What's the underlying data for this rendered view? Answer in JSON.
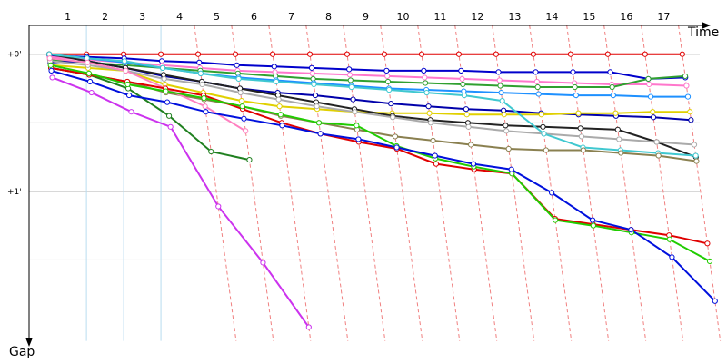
{
  "chart_data": {
    "type": "line",
    "x_label": "Time",
    "y_label": "Gap",
    "x": [
      0,
      1,
      2,
      3,
      4,
      5,
      6,
      7,
      8,
      9,
      10,
      11,
      12,
      13,
      14,
      15,
      16,
      17
    ],
    "xlim": [
      -0.54,
      18.2
    ],
    "xticks": [
      {
        "value": 0.5,
        "label": "1"
      },
      {
        "value": 1.5,
        "label": "2"
      },
      {
        "value": 2.5,
        "label": "3"
      },
      {
        "value": 3.5,
        "label": "4"
      },
      {
        "value": 4.5,
        "label": "5"
      },
      {
        "value": 5.5,
        "label": "6"
      },
      {
        "value": 6.5,
        "label": "7"
      },
      {
        "value": 7.5,
        "label": "8"
      },
      {
        "value": 8.5,
        "label": "9"
      },
      {
        "value": 9.5,
        "label": "10"
      },
      {
        "value": 10.5,
        "label": "11"
      },
      {
        "value": 11.5,
        "label": "12"
      },
      {
        "value": 12.5,
        "label": "13"
      },
      {
        "value": 13.5,
        "label": "14"
      },
      {
        "value": 14.5,
        "label": "15"
      },
      {
        "value": 15.5,
        "label": "16"
      },
      {
        "value": 16.5,
        "label": "17"
      }
    ],
    "ylim": [
      -0.21,
      2.09
    ],
    "yticks": [
      {
        "value": 0,
        "label": "+0'"
      },
      {
        "value": 1,
        "label": "+1'"
      }
    ],
    "minor_yticks": [
      0.5,
      1.5
    ],
    "grid": true,
    "series": [
      {
        "color": "#e00000",
        "values": [
          0,
          0,
          0,
          0,
          0,
          0,
          0,
          0,
          0,
          0,
          0,
          0,
          0,
          0,
          0,
          0,
          0,
          0
        ]
      },
      {
        "color": "#0000cc",
        "values": [
          0.01,
          0.02,
          0.03,
          0.05,
          0.06,
          0.08,
          0.09,
          0.1,
          0.11,
          0.12,
          0.12,
          0.12,
          0.13,
          0.13,
          0.13,
          0.13,
          0.18,
          0.17
        ]
      },
      {
        "color": "#ff77cc",
        "values": [
          0.02,
          0.04,
          0.06,
          0.08,
          0.1,
          0.12,
          0.13,
          0.14,
          0.15,
          0.16,
          0.17,
          0.18,
          0.19,
          0.2,
          0.21,
          0.22,
          0.22,
          0.23
        ]
      },
      {
        "color": "#30a030",
        "values": [
          0.04,
          0.06,
          0.08,
          0.1,
          0.12,
          0.14,
          0.16,
          0.18,
          0.19,
          0.2,
          0.21,
          0.22,
          0.23,
          0.24,
          0.24,
          0.24,
          0.18,
          0.16
        ]
      },
      {
        "color": "#1e90ff",
        "values": [
          0.0,
          0.03,
          0.06,
          0.1,
          0.14,
          0.17,
          0.19,
          0.21,
          0.23,
          0.25,
          0.26,
          0.27,
          0.28,
          0.29,
          0.3,
          0.3,
          0.31,
          0.31
        ]
      },
      {
        "color": "#0000aa",
        "values": [
          0.06,
          0.05,
          0.1,
          0.16,
          0.2,
          0.25,
          0.28,
          0.3,
          0.33,
          0.36,
          0.38,
          0.4,
          0.41,
          0.43,
          0.44,
          0.45,
          0.46,
          0.48
        ]
      },
      {
        "color": "#e0d000",
        "values": [
          0.08,
          0.1,
          0.12,
          0.22,
          0.28,
          0.34,
          0.38,
          0.4,
          0.42,
          0.43,
          0.43,
          0.44,
          0.44,
          0.44,
          0.43,
          0.43,
          0.42,
          0.42
        ]
      },
      {
        "color": "#222222",
        "values": [
          0.0,
          0.05,
          0.1,
          0.15,
          0.2,
          0.25,
          0.3,
          0.35,
          0.4,
          0.45,
          0.48,
          0.5,
          0.52,
          0.53,
          0.54,
          0.55,
          0.64,
          0.75
        ]
      },
      {
        "color": "#aaaaaa",
        "values": [
          0.05,
          0.08,
          0.12,
          0.18,
          0.22,
          0.28,
          0.33,
          0.38,
          0.42,
          0.46,
          0.5,
          0.53,
          0.56,
          0.58,
          0.6,
          0.62,
          0.64,
          0.66
        ]
      },
      {
        "color": "#40c8d0",
        "values": [
          0.0,
          0.03,
          0.05,
          0.1,
          0.14,
          0.18,
          0.2,
          0.22,
          0.24,
          0.26,
          0.28,
          0.3,
          0.34,
          0.58,
          0.68,
          0.7,
          0.72,
          0.74
        ]
      },
      {
        "color": "#8a8050",
        "values": [
          0.1,
          0.15,
          0.2,
          0.28,
          0.33,
          0.38,
          0.45,
          0.5,
          0.55,
          0.6,
          0.63,
          0.66,
          0.69,
          0.7,
          0.7,
          0.72,
          0.74,
          0.78
        ]
      },
      {
        "color": "#ff80c0",
        "values": [
          0.03,
          0.06,
          0.12,
          0.25,
          0.38,
          0.56,
          null,
          null,
          null,
          null,
          null,
          null,
          null,
          null,
          null,
          null,
          null,
          null
        ]
      },
      {
        "color": "#208020",
        "values": [
          0.1,
          0.15,
          0.25,
          0.45,
          0.71,
          0.77,
          null,
          null,
          null,
          null,
          null,
          null,
          null,
          null,
          null,
          null,
          null,
          null
        ]
      },
      {
        "color": "#cc33ee",
        "values": [
          0.17,
          0.28,
          0.42,
          0.53,
          1.11,
          1.52,
          1.99,
          null,
          null,
          null,
          null,
          null,
          null,
          null,
          null,
          null,
          null,
          null
        ]
      },
      {
        "color": "#e00000",
        "values": [
          0.1,
          0.15,
          0.2,
          0.25,
          0.3,
          0.4,
          0.5,
          0.58,
          0.64,
          0.69,
          0.8,
          0.84,
          0.87,
          1.2,
          1.24,
          1.28,
          1.32,
          1.38
        ]
      },
      {
        "color": "#20cc00",
        "values": [
          0.08,
          0.14,
          0.22,
          0.27,
          0.32,
          0.38,
          0.44,
          0.5,
          0.52,
          0.67,
          0.76,
          0.82,
          0.87,
          1.21,
          1.25,
          1.3,
          1.35,
          1.51
        ]
      },
      {
        "color": "#0010dd",
        "values": [
          0.12,
          0.2,
          0.3,
          0.35,
          0.42,
          0.47,
          0.52,
          0.58,
          0.62,
          0.68,
          0.74,
          0.8,
          0.84,
          1.01,
          1.21,
          1.28,
          1.48,
          1.8
        ]
      }
    ]
  }
}
